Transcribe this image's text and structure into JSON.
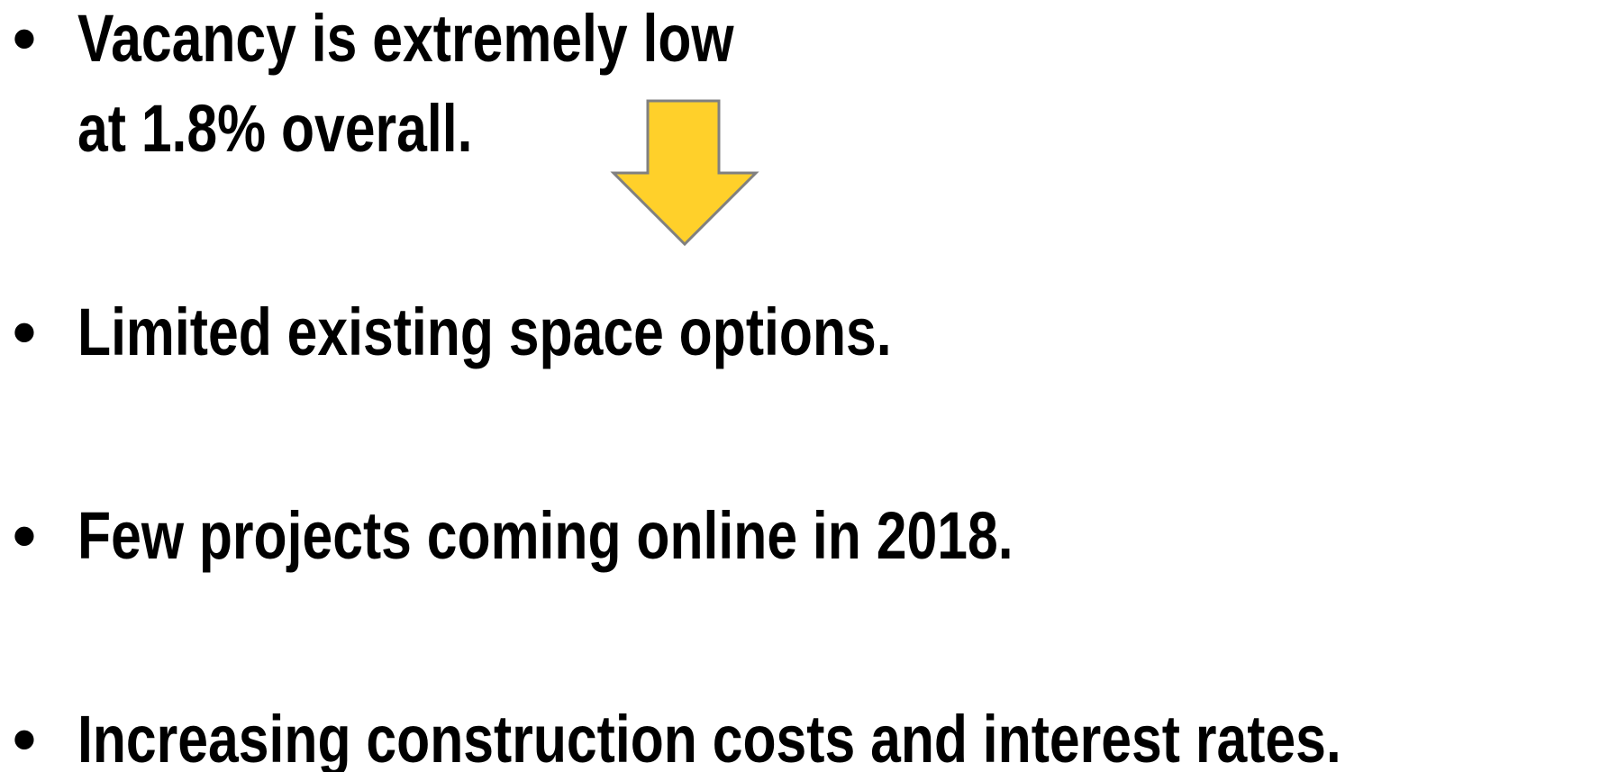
{
  "bullets": [
    [
      "Vacancy is extremely low",
      "at 1.8% overall."
    ],
    [
      "Limited existing space options."
    ],
    [
      "Few projects coming online in 2018."
    ],
    [
      "Increasing construction costs and interest rates."
    ]
  ]
}
